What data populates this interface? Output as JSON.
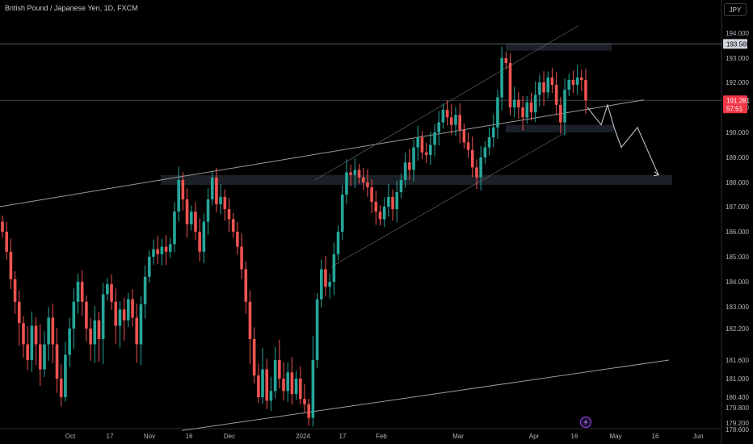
{
  "header": {
    "title": "British Pound / Japanese Yen, 1D, FXCM"
  },
  "toolbar": {
    "currency": "JPY"
  },
  "colors": {
    "up": "#26a69a",
    "down": "#ef5350",
    "bg": "#000000",
    "line": "#9a9a9a"
  },
  "chart_data": {
    "type": "candlestick",
    "x_tick_labels": [
      "Oct",
      "17",
      "Nov",
      "16",
      "Dec",
      "2024",
      "17",
      "Feb",
      "Mar",
      "Apr",
      "16",
      "May",
      "16",
      "Jun"
    ],
    "y_tick_labels": [
      "194.000",
      "193.000",
      "192.000",
      "191.000",
      "190.000",
      "189.000",
      "188.000",
      "187.000",
      "186.000",
      "185.000",
      "184.000",
      "183.000",
      "182.200",
      "181.600",
      "181.000",
      "180.400",
      "179.800",
      "179.200",
      "178.600"
    ],
    "price_labels": [
      {
        "text": "193.569",
        "value": 193.569
      },
      {
        "text": "191.281",
        "sub": "57:51",
        "value": 191.281
      }
    ],
    "closes": [
      186.0,
      185.2,
      184.1,
      183.2,
      182.4,
      181.9,
      181.6,
      182.3,
      181.9,
      181.3,
      181.9,
      182.6,
      181.9,
      181.0,
      180.4,
      181.7,
      182.2,
      183.2,
      184.0,
      183.2,
      182.2,
      181.9,
      182.5,
      182.0,
      183.5,
      183.9,
      183.2,
      182.3,
      182.9,
      182.5,
      183.3,
      182.6,
      181.9,
      183.1,
      184.2,
      185.0,
      185.3,
      185.1,
      185.4,
      185.2,
      185.5,
      186.8,
      188.1,
      187.3,
      186.3,
      186.8,
      186.0,
      185.2,
      186.4,
      187.3,
      188.2,
      187.1,
      187.4,
      186.9,
      186.5,
      186.0,
      185.4,
      184.5,
      183.2,
      182.0,
      181.1,
      180.4,
      181.3,
      180.2,
      180.6,
      181.6,
      181.0,
      180.6,
      181.2,
      180.5,
      181.0,
      180.3,
      180.0,
      179.4,
      181.6,
      183.3,
      184.5,
      183.8,
      184.0,
      185.1,
      186.0,
      187.5,
      188.4,
      188.3,
      188.5,
      188.2,
      188.0,
      187.8,
      187.2,
      186.8,
      186.5,
      187.0,
      187.4,
      186.9,
      187.6,
      188.1,
      188.8,
      188.5,
      189.4,
      189.8,
      189.2,
      189.1,
      189.5,
      190.0,
      190.4,
      190.9,
      190.6,
      190.3,
      190.7,
      190.1,
      189.6,
      189.3,
      188.6,
      188.2,
      189.0,
      189.4,
      189.8,
      190.2,
      191.4,
      193.0,
      192.8,
      191.0,
      191.3,
      191.0,
      190.6,
      191.2,
      190.8,
      191.5,
      192.0,
      191.6,
      192.2,
      191.9,
      191.1,
      190.4,
      191.7,
      192.1,
      191.9,
      192.2,
      192.1,
      191.281
    ],
    "trend_lines": [
      {
        "name": "upper-trendline",
        "from": [
          "0",
          187.0
        ],
        "to": [
          "May",
          191.3
        ]
      },
      {
        "name": "lower-channel-line",
        "from": [
          "Dec",
          178.5
        ],
        "to": [
          "May",
          181.6
        ]
      },
      {
        "name": "rising-channel-top",
        "from": [
          "17",
          188.1
        ],
        "to": [
          "Apr",
          194.3
        ]
      },
      {
        "name": "rising-channel-bottom",
        "from": [
          "17",
          184.6
        ],
        "to": [
          "Apr",
          190.0
        ]
      }
    ],
    "zones": [
      {
        "name": "resistance-zone",
        "low": 193.3,
        "high": 193.6
      },
      {
        "name": "mid-support-zone",
        "low": 190.0,
        "high": 190.3
      },
      {
        "name": "support-zone",
        "low": 187.9,
        "high": 188.3
      }
    ],
    "projection_path": [
      191.0,
      190.3,
      191.1,
      190.2,
      189.4,
      190.2,
      188.3
    ],
    "horizontal_lines": [
      193.569,
      191.281
    ]
  }
}
